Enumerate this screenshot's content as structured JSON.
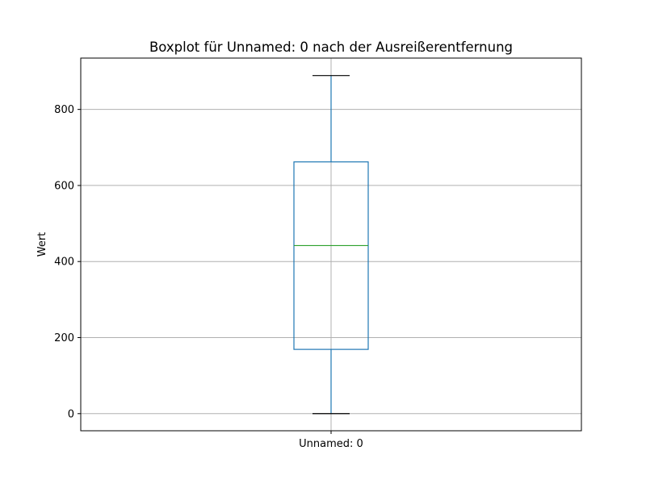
{
  "chart_data": {
    "type": "box",
    "title": "Boxplot für Unnamed: 0 nach der Ausreißerentfernung",
    "xlabel": "",
    "ylabel": "Wert",
    "categories": [
      "Unnamed: 0"
    ],
    "boxes": [
      {
        "category": "Unnamed: 0",
        "min": 0,
        "q1": 169,
        "median": 442,
        "q3": 662,
        "max": 889
      }
    ],
    "ylim": [
      -45,
      935
    ],
    "yticks": [
      0,
      200,
      400,
      600,
      800
    ],
    "grid": true,
    "colors": {
      "box": "#1f77b4",
      "median": "#2ca02c",
      "caps": "#000000",
      "grid": "#b0b0b0"
    }
  }
}
